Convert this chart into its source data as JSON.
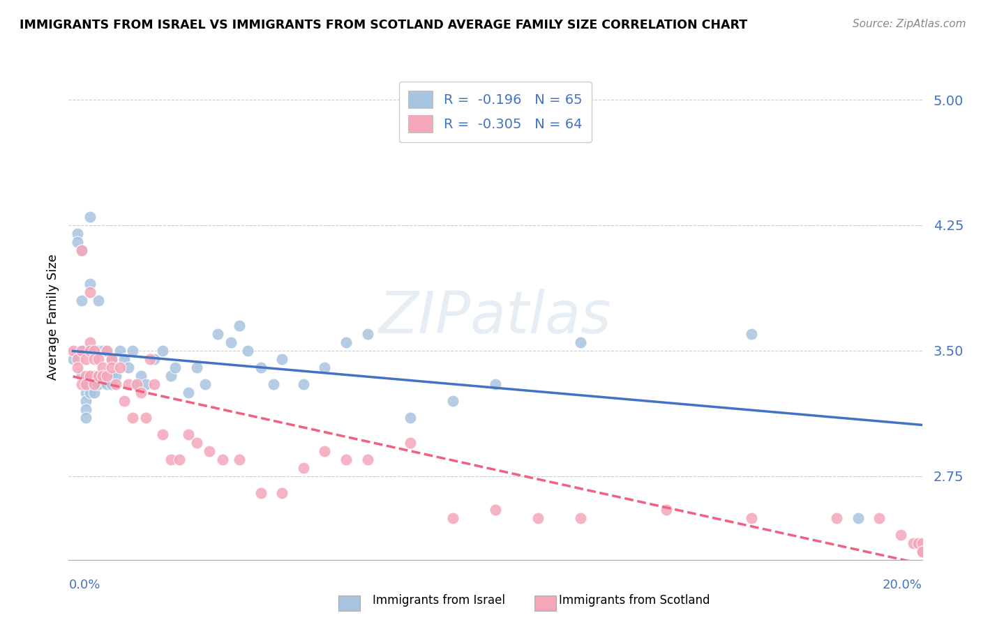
{
  "title": "IMMIGRANTS FROM ISRAEL VS IMMIGRANTS FROM SCOTLAND AVERAGE FAMILY SIZE CORRELATION CHART",
  "source": "Source: ZipAtlas.com",
  "ylabel": "Average Family Size",
  "legend_israel_r": "-0.196",
  "legend_israel_n": "65",
  "legend_scotland_r": "-0.305",
  "legend_scotland_n": "64",
  "color_israel": "#a8c4e0",
  "color_scotland": "#f4a7b9",
  "color_israel_line": "#4472c4",
  "color_scotland_line": "#f06080",
  "background_color": "#ffffff",
  "xmin": 0.0,
  "xmax": 0.2,
  "ymin": 2.25,
  "ymax": 5.15,
  "yticks_grid": [
    2.75,
    3.5,
    4.25,
    5.0
  ],
  "israel_x": [
    0.001,
    0.002,
    0.002,
    0.003,
    0.003,
    0.003,
    0.003,
    0.004,
    0.004,
    0.004,
    0.004,
    0.004,
    0.005,
    0.005,
    0.005,
    0.005,
    0.005,
    0.005,
    0.006,
    0.006,
    0.006,
    0.006,
    0.007,
    0.007,
    0.007,
    0.007,
    0.008,
    0.008,
    0.009,
    0.009,
    0.01,
    0.01,
    0.01,
    0.011,
    0.012,
    0.013,
    0.014,
    0.015,
    0.016,
    0.017,
    0.018,
    0.02,
    0.022,
    0.024,
    0.025,
    0.028,
    0.03,
    0.032,
    0.035,
    0.038,
    0.04,
    0.042,
    0.045,
    0.048,
    0.05,
    0.055,
    0.06,
    0.065,
    0.07,
    0.08,
    0.09,
    0.1,
    0.12,
    0.16,
    0.185
  ],
  "israel_y": [
    3.45,
    4.2,
    4.15,
    4.1,
    3.8,
    3.5,
    3.35,
    3.3,
    3.25,
    3.2,
    3.15,
    3.1,
    4.3,
    3.9,
    3.5,
    3.35,
    3.3,
    3.25,
    3.5,
    3.35,
    3.3,
    3.25,
    3.8,
    3.5,
    3.35,
    3.3,
    3.5,
    3.35,
    3.5,
    3.3,
    3.45,
    3.35,
    3.3,
    3.35,
    3.5,
    3.45,
    3.4,
    3.5,
    3.3,
    3.35,
    3.3,
    3.45,
    3.5,
    3.35,
    3.4,
    3.25,
    3.4,
    3.3,
    3.6,
    3.55,
    3.65,
    3.5,
    3.4,
    3.3,
    3.45,
    3.3,
    3.4,
    3.55,
    3.6,
    3.1,
    3.2,
    3.3,
    3.55,
    3.6,
    2.5
  ],
  "scotland_x": [
    0.001,
    0.002,
    0.002,
    0.003,
    0.003,
    0.003,
    0.004,
    0.004,
    0.004,
    0.005,
    0.005,
    0.005,
    0.005,
    0.006,
    0.006,
    0.006,
    0.007,
    0.007,
    0.008,
    0.008,
    0.009,
    0.009,
    0.01,
    0.01,
    0.011,
    0.012,
    0.013,
    0.014,
    0.015,
    0.016,
    0.017,
    0.018,
    0.019,
    0.02,
    0.022,
    0.024,
    0.026,
    0.028,
    0.03,
    0.033,
    0.036,
    0.04,
    0.045,
    0.05,
    0.055,
    0.06,
    0.065,
    0.07,
    0.08,
    0.09,
    0.1,
    0.11,
    0.12,
    0.14,
    0.16,
    0.18,
    0.19,
    0.195,
    0.198,
    0.199,
    0.2,
    0.2,
    0.2,
    0.2
  ],
  "scotland_y": [
    3.5,
    3.45,
    3.4,
    4.1,
    3.5,
    3.3,
    3.45,
    3.35,
    3.3,
    3.85,
    3.55,
    3.5,
    3.35,
    3.5,
    3.45,
    3.3,
    3.45,
    3.35,
    3.4,
    3.35,
    3.5,
    3.35,
    3.45,
    3.4,
    3.3,
    3.4,
    3.2,
    3.3,
    3.1,
    3.3,
    3.25,
    3.1,
    3.45,
    3.3,
    3.0,
    2.85,
    2.85,
    3.0,
    2.95,
    2.9,
    2.85,
    2.85,
    2.65,
    2.65,
    2.8,
    2.9,
    2.85,
    2.85,
    2.95,
    2.5,
    2.55,
    2.5,
    2.5,
    2.55,
    2.5,
    2.5,
    2.5,
    2.4,
    2.35,
    2.35,
    2.35,
    2.3,
    2.3,
    2.3
  ]
}
